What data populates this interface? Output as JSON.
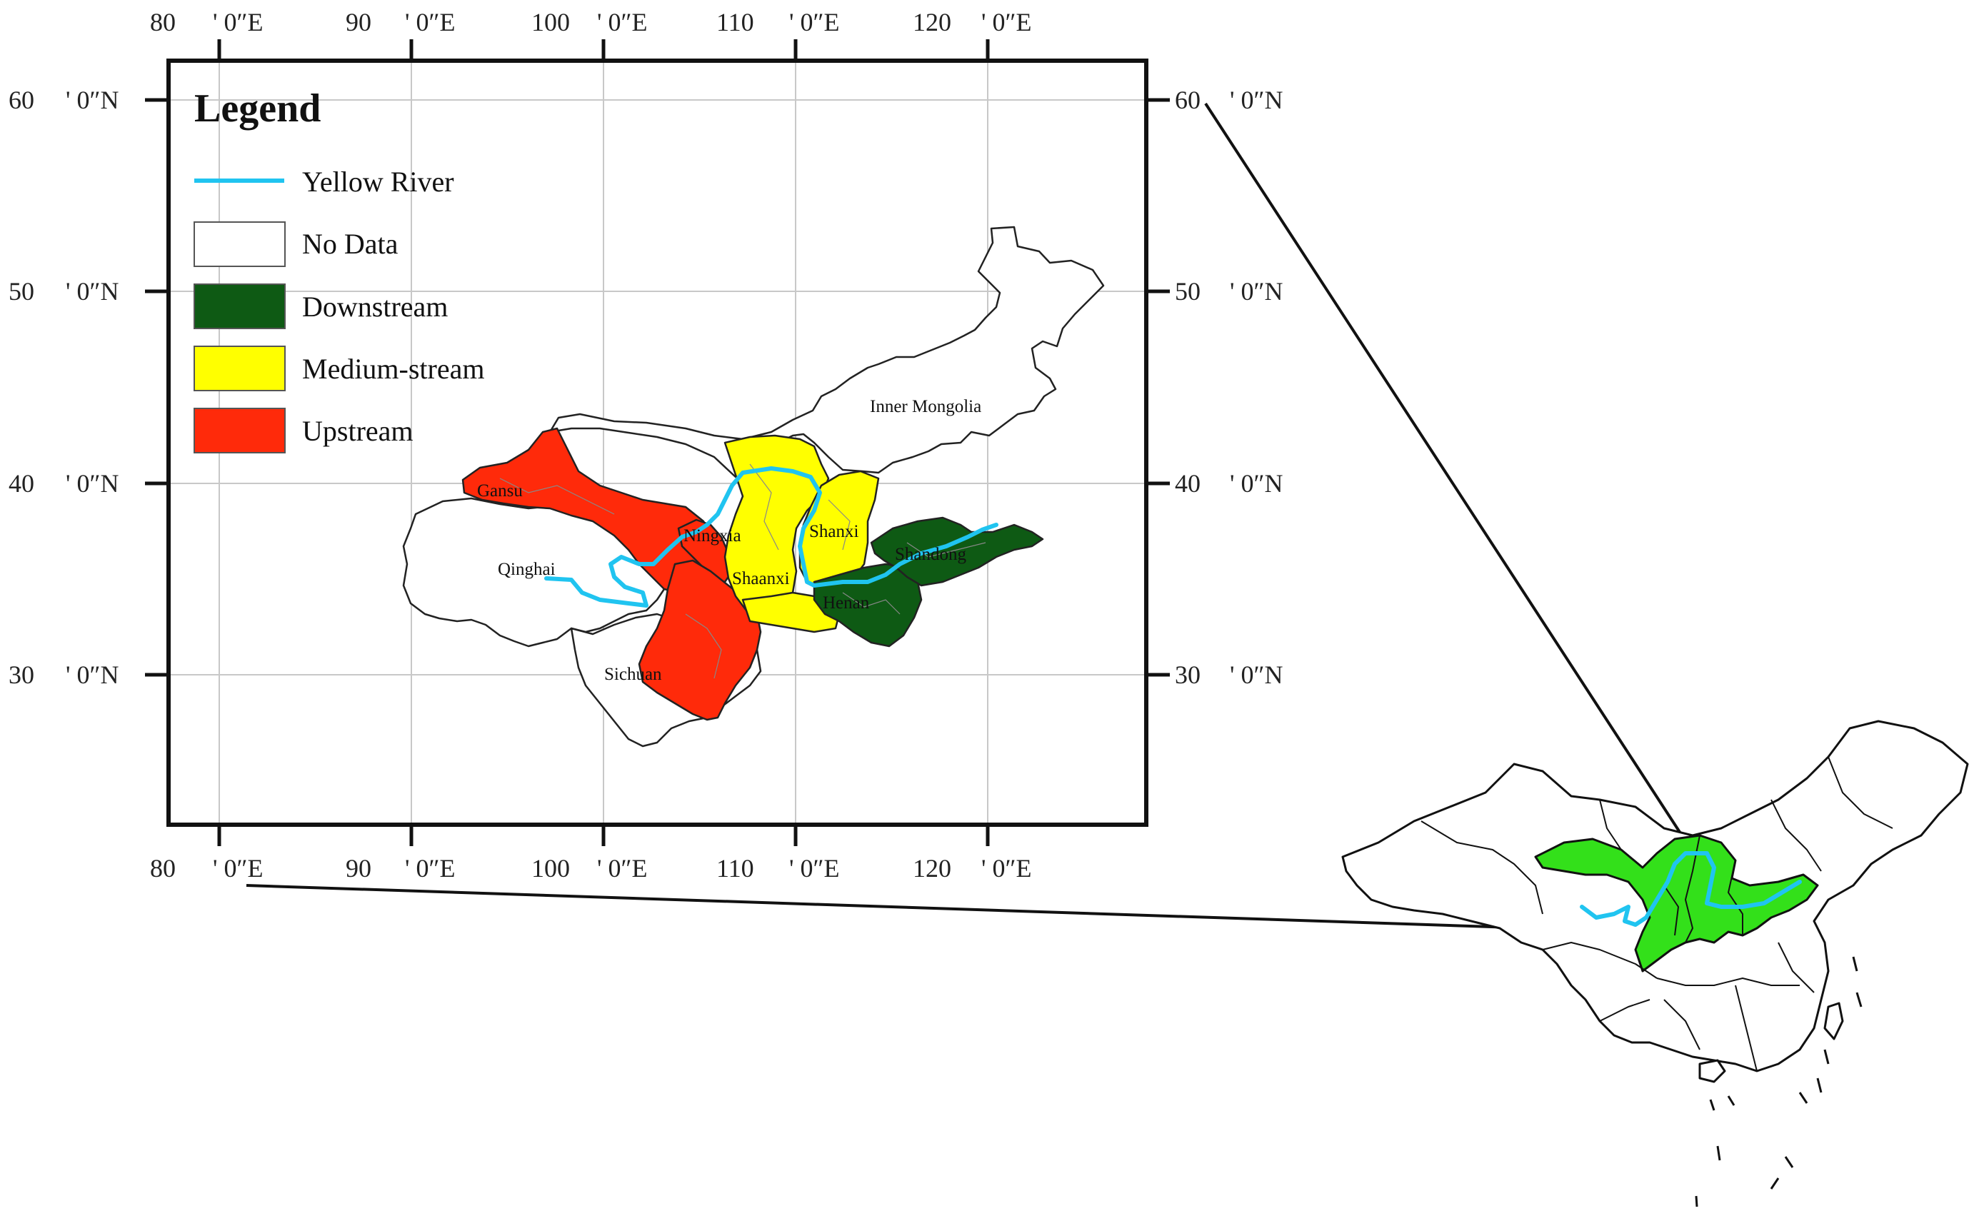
{
  "axes": {
    "top_lon_labels": [
      "80",
      "' 0″E",
      "90",
      "' 0″E",
      "100",
      "' 0″E",
      "110",
      "' 0″E",
      "120",
      "' 0″E"
    ],
    "bottom_lon_labels": [
      "80",
      "' 0″E",
      "90",
      "' 0″E",
      "100",
      "' 0″E",
      "110",
      "' 0″E",
      "120",
      "' 0″E"
    ],
    "left_lat_labels": [
      "60",
      "' 0″N",
      "50",
      "' 0″N",
      "40",
      "' 0″N",
      "30",
      "' 0″N"
    ],
    "right_lat_labels": [
      "60",
      "' 0″N",
      "50",
      "' 0″N",
      "40",
      "' 0″N",
      "30",
      "' 0″N"
    ],
    "lon_values": [
      80,
      90,
      100,
      110,
      120
    ],
    "lat_values": [
      60,
      50,
      40,
      30
    ]
  },
  "legend": {
    "title": "Legend",
    "items": [
      {
        "label": "Yellow River",
        "kind": "line",
        "color": "#20c4f0"
      },
      {
        "label": "No Data",
        "kind": "box",
        "color": "#ffffff"
      },
      {
        "label": "Downstream",
        "kind": "box",
        "color": "#0e5a14"
      },
      {
        "label": "Medium-stream",
        "kind": "box",
        "color": "#ffff00"
      },
      {
        "label": "Upstream",
        "kind": "box",
        "color": "#ff2a0a"
      }
    ]
  },
  "provinces": [
    {
      "name": "Inner Mongolia",
      "category": "No Data"
    },
    {
      "name": "Gansu",
      "category": "Upstream"
    },
    {
      "name": "Qinghai",
      "category": "No Data"
    },
    {
      "name": "Ningxia",
      "category": "Upstream"
    },
    {
      "name": "Shanxi",
      "category": "Medium-stream"
    },
    {
      "name": "Shandong",
      "category": "Downstream"
    },
    {
      "name": "Shaanxi",
      "category": "Medium-stream"
    },
    {
      "name": "Henan",
      "category": "Downstream"
    },
    {
      "name": "Sichuan",
      "category": "Upstream"
    }
  ],
  "colors": {
    "river": "#20c4f0",
    "downstream": "#0e5a14",
    "medium": "#ffff00",
    "upstream": "#ff2a0a",
    "inset_highlight": "#33e01a",
    "grid": "#c8c8c8"
  }
}
